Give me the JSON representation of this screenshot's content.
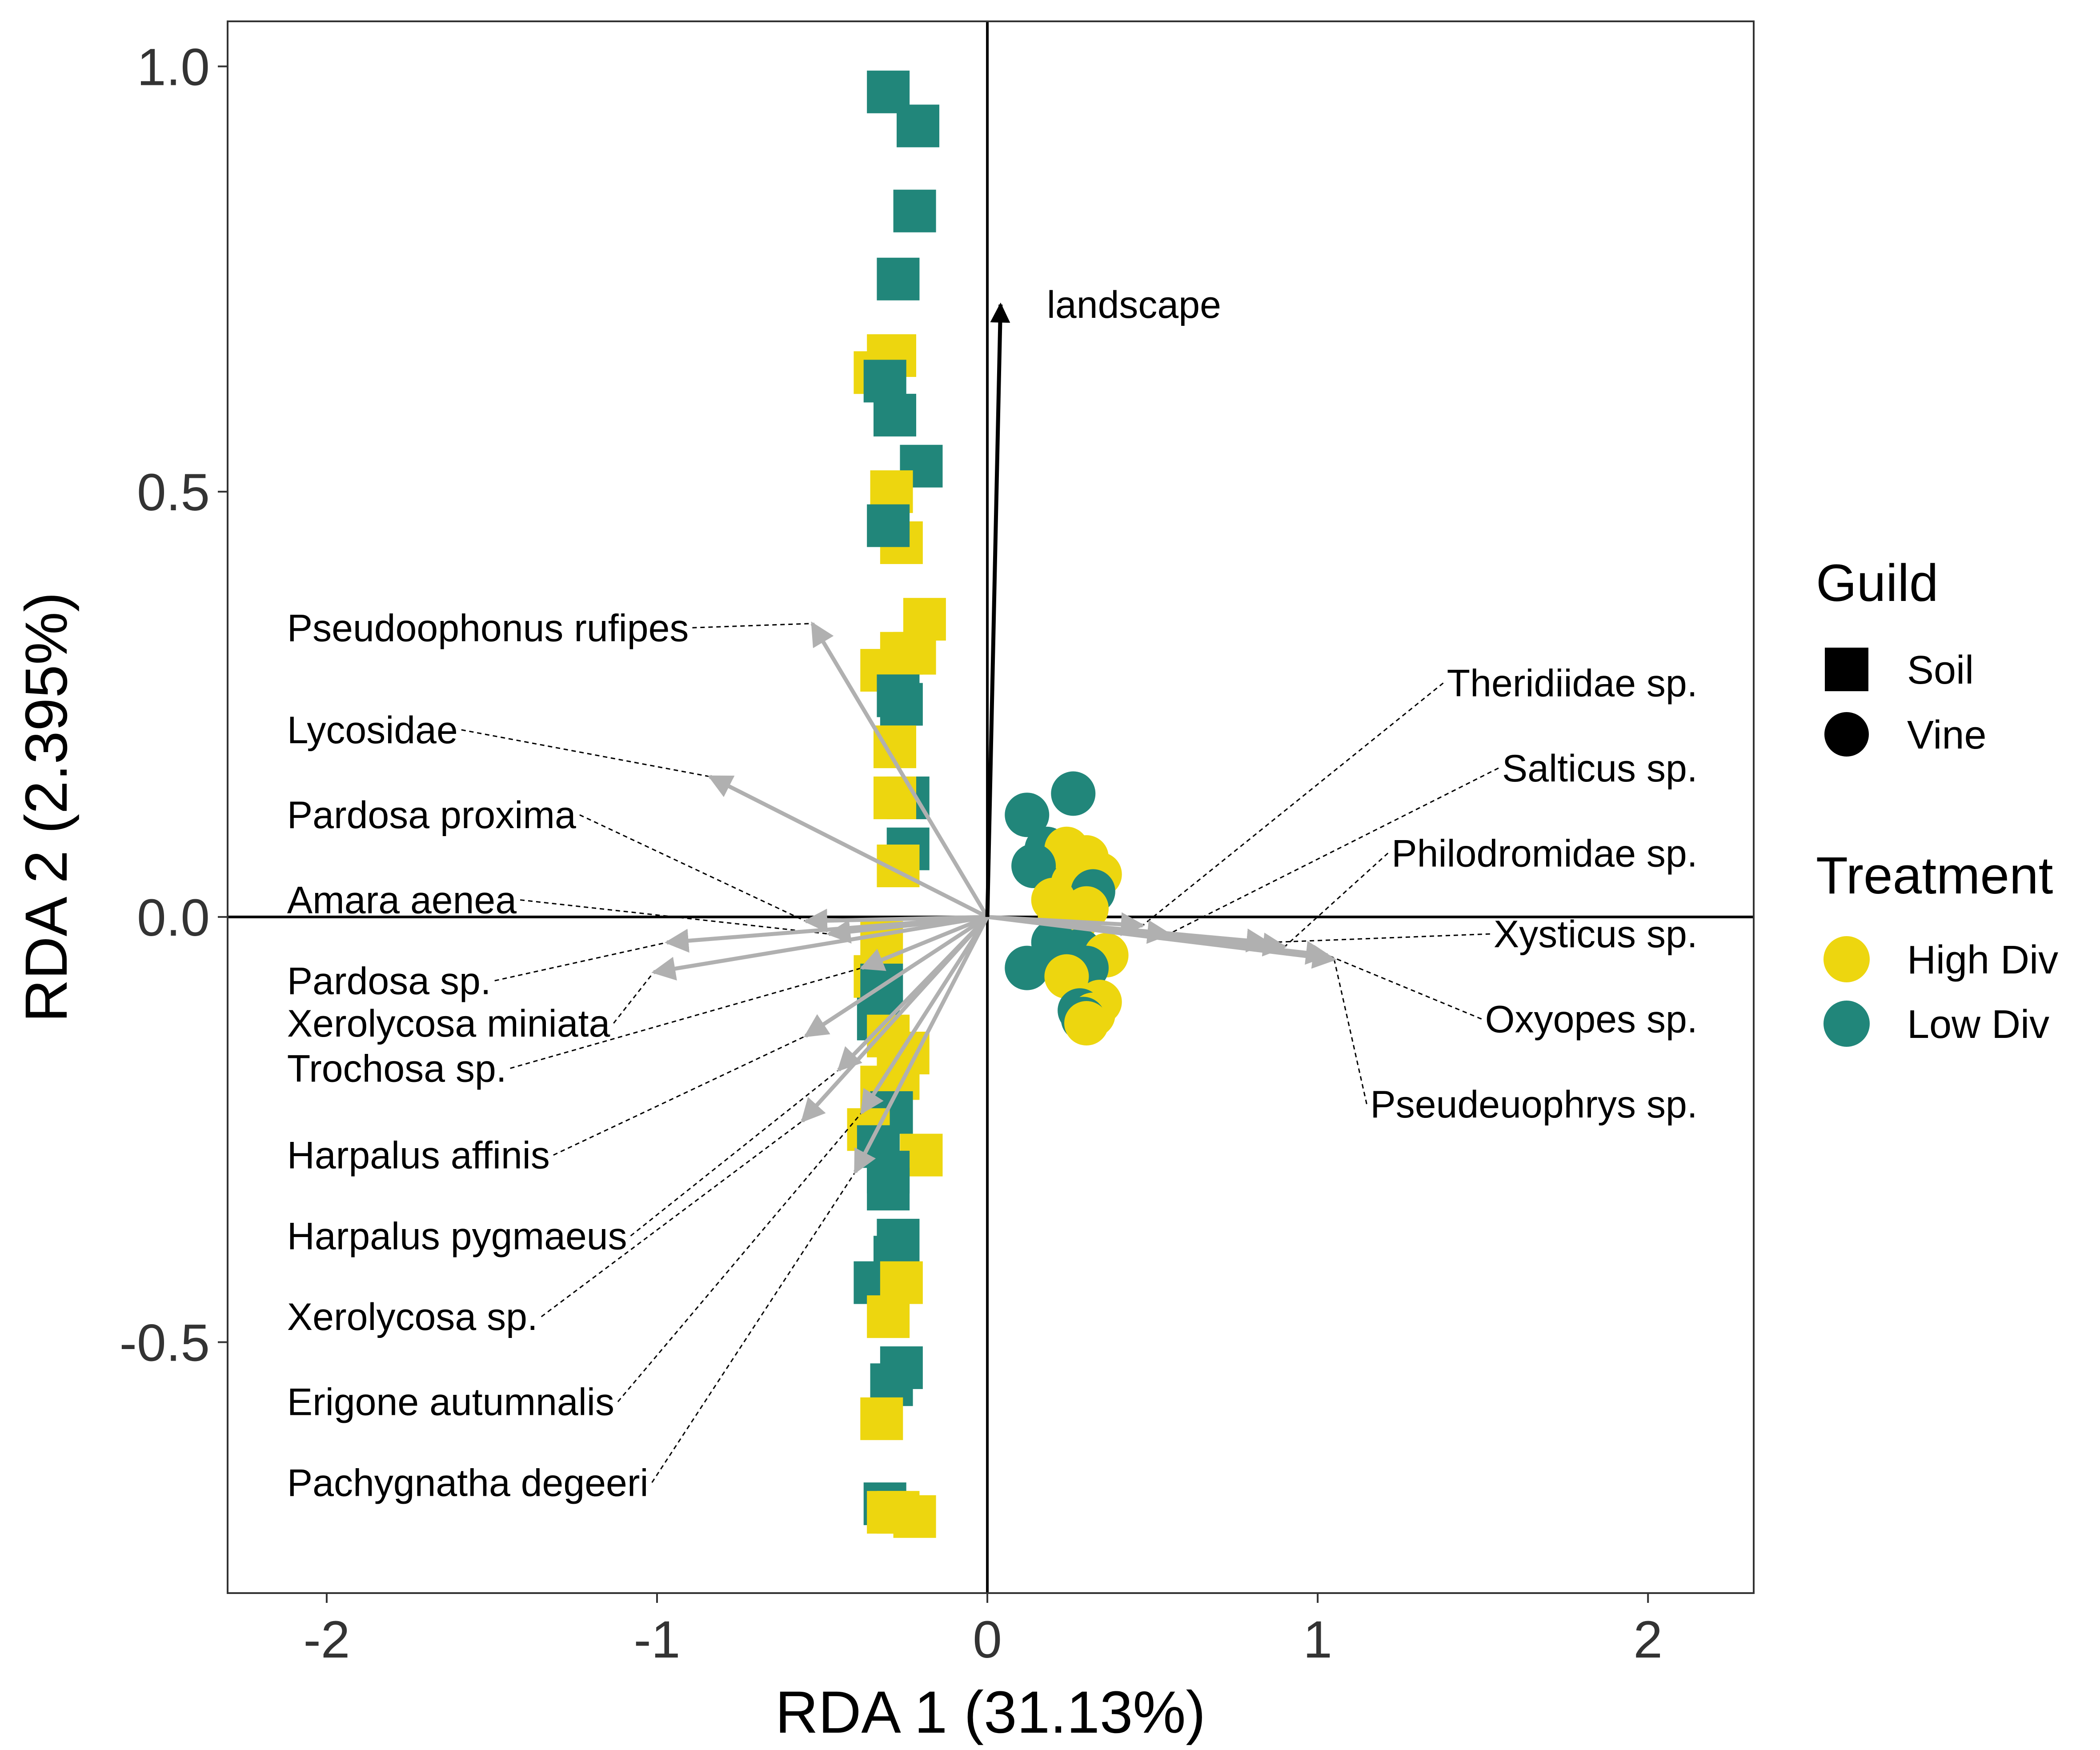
{
  "chart_data": {
    "type": "scatter",
    "subtype": "rda-biplot",
    "title": "",
    "xlabel": "RDA 1 (31.13%)",
    "ylabel": "RDA 2 (2.395%)",
    "xlim": [
      -2.3,
      2.32
    ],
    "ylim": [
      -0.795,
      1.053
    ],
    "xticks": [
      -2,
      -1,
      0,
      1,
      2
    ],
    "xtick_labels": [
      "-2",
      "-1",
      "0",
      "1",
      "2"
    ],
    "yticks": [
      -0.5,
      0.0,
      0.5,
      1.0
    ],
    "ytick_labels": [
      "-0.5",
      "0.0",
      "0.5",
      "1.0"
    ],
    "grid": false,
    "legend_position": "right",
    "colors": {
      "High Div": "#EDD60F",
      "Low Div": "#21867A",
      "arrow": "#B0B0B0",
      "landscape": "#000000"
    },
    "legend": {
      "guild_title": "Guild",
      "guild_items": [
        {
          "label": "Soil",
          "shape": "square"
        },
        {
          "label": "Vine",
          "shape": "circle"
        }
      ],
      "treatment_title": "Treatment",
      "treatment_items": [
        {
          "label": "High Div",
          "color": "#EDD60F"
        },
        {
          "label": "Low Div",
          "color": "#21867A"
        }
      ]
    },
    "points": [
      {
        "x": -0.3,
        "y": 0.97,
        "guild": "Soil",
        "treatment": "Low Div"
      },
      {
        "x": -0.21,
        "y": 0.93,
        "guild": "Soil",
        "treatment": "Low Div"
      },
      {
        "x": -0.22,
        "y": 0.83,
        "guild": "Soil",
        "treatment": "Low Div"
      },
      {
        "x": -0.27,
        "y": 0.75,
        "guild": "Soil",
        "treatment": "Low Div"
      },
      {
        "x": -0.3,
        "y": 0.66,
        "guild": "Soil",
        "treatment": "High Div"
      },
      {
        "x": -0.28,
        "y": 0.66,
        "guild": "Soil",
        "treatment": "High Div"
      },
      {
        "x": -0.34,
        "y": 0.64,
        "guild": "Soil",
        "treatment": "High Div"
      },
      {
        "x": -0.31,
        "y": 0.63,
        "guild": "Soil",
        "treatment": "Low Div"
      },
      {
        "x": -0.28,
        "y": 0.59,
        "guild": "Soil",
        "treatment": "Low Div"
      },
      {
        "x": -0.2,
        "y": 0.53,
        "guild": "Soil",
        "treatment": "Low Div"
      },
      {
        "x": -0.29,
        "y": 0.5,
        "guild": "Soil",
        "treatment": "High Div"
      },
      {
        "x": -0.26,
        "y": 0.44,
        "guild": "Soil",
        "treatment": "High Div"
      },
      {
        "x": -0.3,
        "y": 0.46,
        "guild": "Soil",
        "treatment": "Low Div"
      },
      {
        "x": -0.19,
        "y": 0.35,
        "guild": "Soil",
        "treatment": "High Div"
      },
      {
        "x": -0.26,
        "y": 0.31,
        "guild": "Soil",
        "treatment": "High Div"
      },
      {
        "x": -0.32,
        "y": 0.29,
        "guild": "Soil",
        "treatment": "High Div"
      },
      {
        "x": -0.22,
        "y": 0.31,
        "guild": "Soil",
        "treatment": "High Div"
      },
      {
        "x": -0.27,
        "y": 0.26,
        "guild": "Soil",
        "treatment": "Low Div"
      },
      {
        "x": -0.26,
        "y": 0.25,
        "guild": "Soil",
        "treatment": "Low Div"
      },
      {
        "x": -0.28,
        "y": 0.2,
        "guild": "Soil",
        "treatment": "High Div"
      },
      {
        "x": -0.24,
        "y": 0.14,
        "guild": "Soil",
        "treatment": "Low Div"
      },
      {
        "x": -0.28,
        "y": 0.14,
        "guild": "Soil",
        "treatment": "High Div"
      },
      {
        "x": -0.24,
        "y": 0.08,
        "guild": "Soil",
        "treatment": "Low Div"
      },
      {
        "x": -0.27,
        "y": 0.06,
        "guild": "Soil",
        "treatment": "High Div"
      },
      {
        "x": -0.32,
        "y": -0.03,
        "guild": "Soil",
        "treatment": "High Div"
      },
      {
        "x": -0.34,
        "y": -0.07,
        "guild": "Soil",
        "treatment": "High Div"
      },
      {
        "x": -0.32,
        "y": -0.08,
        "guild": "Soil",
        "treatment": "Low Div"
      },
      {
        "x": -0.33,
        "y": -0.12,
        "guild": "Soil",
        "treatment": "Low Div"
      },
      {
        "x": -0.3,
        "y": -0.14,
        "guild": "Soil",
        "treatment": "High Div"
      },
      {
        "x": -0.24,
        "y": -0.16,
        "guild": "Soil",
        "treatment": "High Div"
      },
      {
        "x": -0.27,
        "y": -0.19,
        "guild": "Soil",
        "treatment": "High Div"
      },
      {
        "x": -0.32,
        "y": -0.2,
        "guild": "Soil",
        "treatment": "High Div"
      },
      {
        "x": -0.29,
        "y": -0.23,
        "guild": "Soil",
        "treatment": "Low Div"
      },
      {
        "x": -0.36,
        "y": -0.25,
        "guild": "Soil",
        "treatment": "High Div"
      },
      {
        "x": -0.33,
        "y": -0.27,
        "guild": "Soil",
        "treatment": "Low Div"
      },
      {
        "x": -0.2,
        "y": -0.28,
        "guild": "Soil",
        "treatment": "High Div"
      },
      {
        "x": -0.3,
        "y": -0.3,
        "guild": "Soil",
        "treatment": "Low Div"
      },
      {
        "x": -0.3,
        "y": -0.32,
        "guild": "Soil",
        "treatment": "Low Div"
      },
      {
        "x": -0.27,
        "y": -0.38,
        "guild": "Soil",
        "treatment": "Low Div"
      },
      {
        "x": -0.28,
        "y": -0.4,
        "guild": "Soil",
        "treatment": "Low Div"
      },
      {
        "x": -0.34,
        "y": -0.43,
        "guild": "Soil",
        "treatment": "Low Div"
      },
      {
        "x": -0.26,
        "y": -0.43,
        "guild": "Soil",
        "treatment": "High Div"
      },
      {
        "x": -0.3,
        "y": -0.47,
        "guild": "Soil",
        "treatment": "High Div"
      },
      {
        "x": -0.26,
        "y": -0.53,
        "guild": "Soil",
        "treatment": "Low Div"
      },
      {
        "x": -0.29,
        "y": -0.55,
        "guild": "Soil",
        "treatment": "Low Div"
      },
      {
        "x": -0.32,
        "y": -0.59,
        "guild": "Soil",
        "treatment": "High Div"
      },
      {
        "x": -0.31,
        "y": -0.69,
        "guild": "Soil",
        "treatment": "Low Div"
      },
      {
        "x": -0.27,
        "y": -0.7,
        "guild": "Soil",
        "treatment": "High Div"
      },
      {
        "x": -0.3,
        "y": -0.7,
        "guild": "Soil",
        "treatment": "High Div"
      },
      {
        "x": -0.22,
        "y": -0.705,
        "guild": "Soil",
        "treatment": "High Div"
      },
      {
        "x": 0.26,
        "y": 0.145,
        "guild": "Vine",
        "treatment": "Low Div"
      },
      {
        "x": 0.12,
        "y": 0.12,
        "guild": "Vine",
        "treatment": "Low Div"
      },
      {
        "x": 0.18,
        "y": 0.08,
        "guild": "Vine",
        "treatment": "Low Div"
      },
      {
        "x": 0.24,
        "y": 0.08,
        "guild": "Vine",
        "treatment": "High Div"
      },
      {
        "x": 0.3,
        "y": 0.07,
        "guild": "Vine",
        "treatment": "High Div"
      },
      {
        "x": 0.34,
        "y": 0.05,
        "guild": "Vine",
        "treatment": "High Div"
      },
      {
        "x": 0.14,
        "y": 0.06,
        "guild": "Vine",
        "treatment": "Low Div"
      },
      {
        "x": 0.26,
        "y": 0.04,
        "guild": "Vine",
        "treatment": "High Div"
      },
      {
        "x": 0.32,
        "y": 0.03,
        "guild": "Vine",
        "treatment": "Low Div"
      },
      {
        "x": 0.2,
        "y": 0.02,
        "guild": "Vine",
        "treatment": "High Div"
      },
      {
        "x": 0.3,
        "y": 0.01,
        "guild": "Vine",
        "treatment": "High Div"
      },
      {
        "x": 0.22,
        "y": 0.0,
        "guild": "Vine",
        "treatment": "High Div"
      },
      {
        "x": 0.26,
        "y": -0.01,
        "guild": "Vine",
        "treatment": "High Div"
      },
      {
        "x": 0.2,
        "y": -0.03,
        "guild": "Vine",
        "treatment": "Low Div"
      },
      {
        "x": 0.28,
        "y": -0.04,
        "guild": "Vine",
        "treatment": "Low Div"
      },
      {
        "x": 0.36,
        "y": -0.045,
        "guild": "Vine",
        "treatment": "High Div"
      },
      {
        "x": 0.12,
        "y": -0.06,
        "guild": "Vine",
        "treatment": "Low Div"
      },
      {
        "x": 0.3,
        "y": -0.06,
        "guild": "Vine",
        "treatment": "Low Div"
      },
      {
        "x": 0.24,
        "y": -0.07,
        "guild": "Vine",
        "treatment": "High Div"
      },
      {
        "x": 0.34,
        "y": -0.1,
        "guild": "Vine",
        "treatment": "High Div"
      },
      {
        "x": 0.28,
        "y": -0.11,
        "guild": "Vine",
        "treatment": "Low Div"
      },
      {
        "x": 0.32,
        "y": -0.115,
        "guild": "Vine",
        "treatment": "High Div"
      },
      {
        "x": 0.29,
        "y": -0.12,
        "guild": "Vine",
        "treatment": "Low Div"
      },
      {
        "x": 0.3,
        "y": -0.125,
        "guild": "Vine",
        "treatment": "High Div"
      }
    ],
    "env_vectors": [
      {
        "label": "landscape",
        "x": 0.04,
        "y": 0.72,
        "label_x": 0.18,
        "label_y": 0.72
      }
    ],
    "species_vectors": [
      {
        "label": "Pseudoophonus rufipes",
        "x": -0.53,
        "y": 0.345,
        "label_x": -2.12,
        "label_y": 0.34,
        "side": "left"
      },
      {
        "label": "Lycosidae",
        "x": -0.84,
        "y": 0.165,
        "label_x": -2.12,
        "label_y": 0.22,
        "side": "left"
      },
      {
        "label": "Pardosa proxima",
        "x": -0.55,
        "y": -0.005,
        "label_x": -2.12,
        "label_y": 0.12,
        "side": "left"
      },
      {
        "label": "Amara aenea",
        "x": -0.48,
        "y": -0.02,
        "label_x": -2.12,
        "label_y": 0.02,
        "side": "left"
      },
      {
        "label": "Pardosa sp.",
        "x": -0.97,
        "y": -0.03,
        "label_x": -2.12,
        "label_y": -0.075,
        "side": "left"
      },
      {
        "label": "Xerolycosa miniata",
        "x": -1.01,
        "y": -0.065,
        "label_x": -2.12,
        "label_y": -0.125,
        "side": "left"
      },
      {
        "label": "Trochosa sp.",
        "x": -0.38,
        "y": -0.06,
        "label_x": -2.12,
        "label_y": -0.178,
        "side": "left"
      },
      {
        "label": "Harpalus affinis",
        "x": -0.55,
        "y": -0.14,
        "label_x": -2.12,
        "label_y": -0.28,
        "side": "left"
      },
      {
        "label": "Harpalus pygmaeus",
        "x": -0.45,
        "y": -0.18,
        "label_x": -2.12,
        "label_y": -0.375,
        "side": "left"
      },
      {
        "label": "Xerolycosa sp.",
        "x": -0.56,
        "y": -0.24,
        "label_x": -2.12,
        "label_y": -0.47,
        "side": "left"
      },
      {
        "label": "Erigone autumnalis",
        "x": -0.38,
        "y": -0.23,
        "label_x": -2.12,
        "label_y": -0.57,
        "side": "left"
      },
      {
        "label": "Pachygnatha degeeri",
        "x": -0.4,
        "y": -0.3,
        "label_x": -2.12,
        "label_y": -0.665,
        "side": "left"
      },
      {
        "label": "Theridiidae sp.",
        "x": 0.47,
        "y": -0.01,
        "label_x": 2.15,
        "label_y": 0.275,
        "side": "right"
      },
      {
        "label": "Salticus sp.",
        "x": 0.55,
        "y": -0.02,
        "label_x": 2.15,
        "label_y": 0.175,
        "side": "right"
      },
      {
        "label": "Philodromidae sp.",
        "x": 0.9,
        "y": -0.035,
        "label_x": 2.15,
        "label_y": 0.075,
        "side": "right"
      },
      {
        "label": "Xysticus sp.",
        "x": 0.85,
        "y": -0.03,
        "label_x": 2.15,
        "label_y": -0.02,
        "side": "right"
      },
      {
        "label": "Oxyopes sp.",
        "x": 1.03,
        "y": -0.045,
        "label_x": 2.15,
        "label_y": -0.12,
        "side": "right"
      },
      {
        "label": "Pseudeuophrys sp.",
        "x": 1.05,
        "y": -0.05,
        "label_x": 2.15,
        "label_y": -0.22,
        "side": "right"
      }
    ]
  }
}
